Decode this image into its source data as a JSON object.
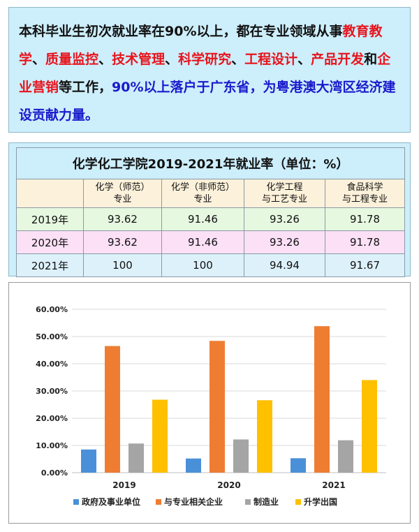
{
  "intro": {
    "s1": "本科毕业生初次就业率在90%以上，都在专业领域从事",
    "s2": "教育教学",
    "s3": "、",
    "s4": "质量监控",
    "s5": "、",
    "s6": "技术管理",
    "s7": "、",
    "s8": "科学研究",
    "s9": "、",
    "s10": "工程设计",
    "s11": "、",
    "s12": "产品开发",
    "s13": "和",
    "s14": "企业营销",
    "s15": "等工作，",
    "s16": "90%以上落户于广东省，为粤港澳大湾区经济建设贡献力量。",
    "highlight_red": "#e8141c",
    "highlight_blue": "#1a1acc"
  },
  "table": {
    "title": "化学化工学院2019-2021年就业率（单位：%）",
    "headers": [
      [
        "化学（师范）",
        "专业"
      ],
      [
        "化学（非师范）",
        "专业"
      ],
      [
        "化学工程",
        "与工艺专业"
      ],
      [
        "食品科学",
        "与工程专业"
      ]
    ],
    "rows": [
      {
        "year": "2019年",
        "values": [
          "93.62",
          "91.46",
          "93.26",
          "91.78"
        ]
      },
      {
        "year": "2020年",
        "values": [
          "93.62",
          "91.46",
          "93.26",
          "91.78"
        ]
      },
      {
        "year": "2021年",
        "values": [
          "100",
          "100",
          "94.94",
          "91.67"
        ]
      }
    ]
  },
  "chart_data": {
    "type": "bar",
    "categories": [
      "2019",
      "2020",
      "2021"
    ],
    "series": [
      {
        "name": "政府及事业单位",
        "color": "#4a90d9",
        "values": [
          8.5,
          5.2,
          5.3
        ]
      },
      {
        "name": "与专业相关企业",
        "color": "#ee7d31",
        "values": [
          46.5,
          48.4,
          53.8
        ]
      },
      {
        "name": "制造业",
        "color": "#a5a5a5",
        "values": [
          10.7,
          12.2,
          11.9
        ]
      },
      {
        "name": "升学出国",
        "color": "#ffc000",
        "values": [
          26.8,
          26.6,
          34.0
        ]
      }
    ],
    "ylim": [
      0,
      60
    ],
    "yticks": [
      0,
      10,
      20,
      30,
      40,
      50,
      60
    ],
    "ytick_labels": [
      "0.00%",
      "10.00%",
      "20.00%",
      "30.00%",
      "40.00%",
      "50.00%",
      "60.00%"
    ],
    "grid": true,
    "legend": "bottom"
  }
}
